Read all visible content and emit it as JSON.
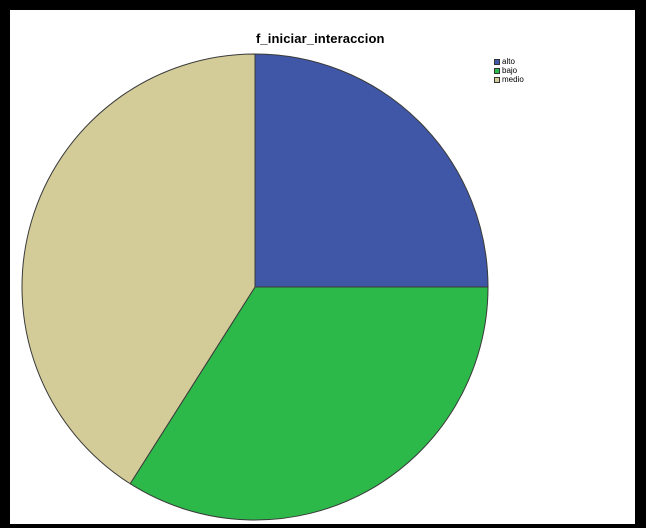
{
  "chart_data": {
    "type": "pie",
    "title": "f_iniciar_interaccion",
    "categories": [
      "alto",
      "bajo",
      "medio"
    ],
    "values": [
      25,
      34,
      41
    ],
    "colors": [
      "#3f57a6",
      "#2db84a",
      "#d3cb98"
    ],
    "legend_position": "top-right",
    "start_angle_deg": 0,
    "direction": "clockwise"
  }
}
